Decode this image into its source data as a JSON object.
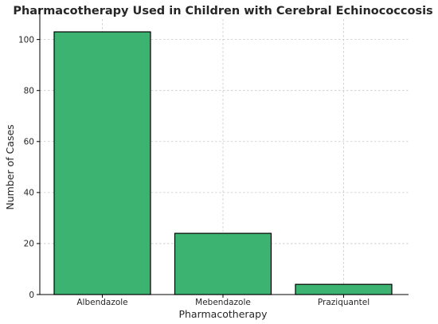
{
  "chart_data": {
    "type": "bar",
    "title": "Pharmacotherapy Used in Children with Cerebral Echinococcosis",
    "xlabel": "Pharmacotherapy",
    "ylabel": "Number of Cases",
    "categories": [
      "Albendazole",
      "Mebendazole",
      "Praziquantel"
    ],
    "values": [
      103,
      24,
      4
    ],
    "ylim": [
      0,
      108
    ],
    "yticks": [
      0,
      20,
      40,
      60,
      80,
      100
    ],
    "grid": true,
    "bar_color": "#3cb371",
    "edge_color": "#000000"
  }
}
